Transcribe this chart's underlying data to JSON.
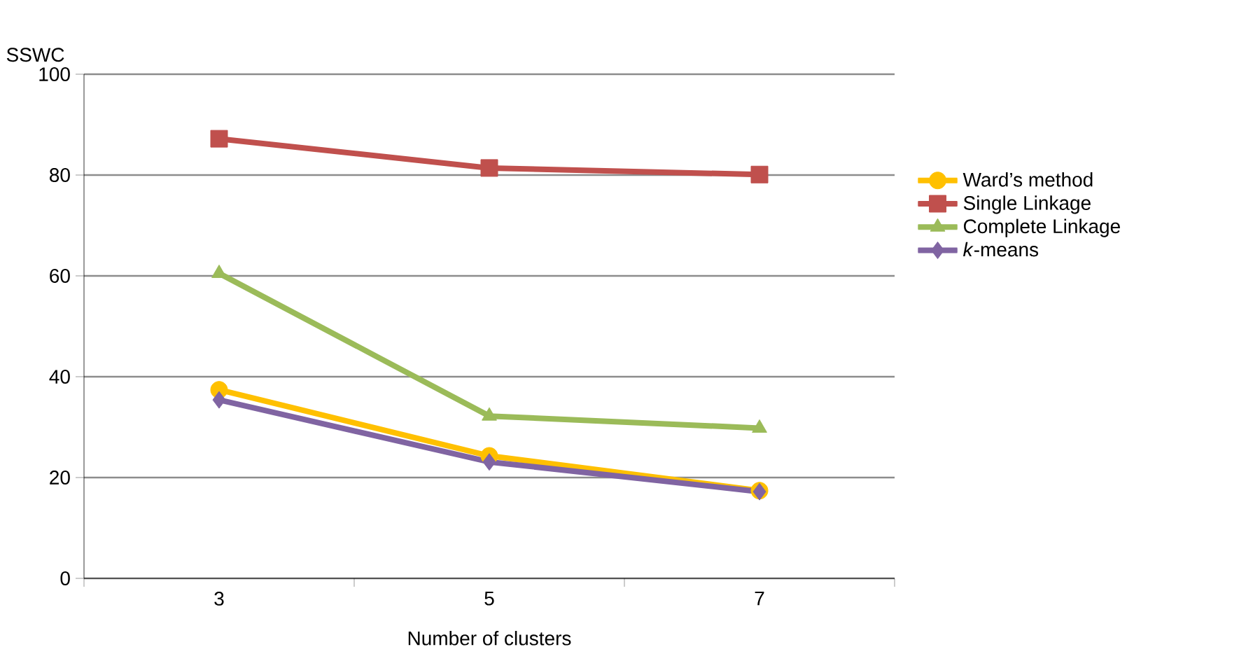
{
  "chart_data": {
    "type": "line",
    "xlabel": "Number of clusters",
    "ylabel": "SSWC",
    "categories": [
      "3",
      "5",
      "7"
    ],
    "series": [
      {
        "name": "Ward’s method",
        "color": "#ffc000",
        "marker": "circle",
        "values": [
          37.4,
          24.3,
          17.4
        ]
      },
      {
        "name": "Single Linkage",
        "color": "#c0504d",
        "marker": "square",
        "values": [
          87.2,
          81.4,
          80.1
        ]
      },
      {
        "name": "Complete Linkage",
        "color": "#9bbb59",
        "marker": "triangle",
        "values": [
          60.5,
          32.2,
          29.8
        ]
      },
      {
        "name": "*k*-means",
        "color": "#8064a2",
        "marker": "diamond",
        "values": [
          35.4,
          23.1,
          17.2
        ]
      }
    ],
    "ylim": [
      0,
      100
    ],
    "yticks": [
      0,
      20,
      40,
      60,
      80,
      100
    ],
    "grid": "y",
    "legend": "right",
    "line_style": "solid"
  }
}
